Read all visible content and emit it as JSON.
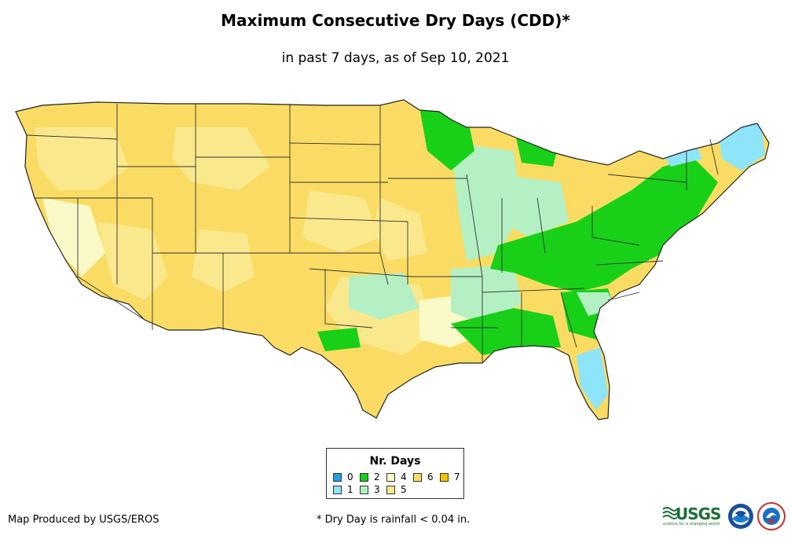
{
  "title": "Maximum Consecutive Dry Days (CDD)*",
  "subtitle": "in past 7 days, as of Sep 10, 2021",
  "legend": {
    "title": "Nr. Days",
    "items": [
      {
        "label": "0",
        "color": "#1ea0e6"
      },
      {
        "label": "1",
        "color": "#8ee4f8"
      },
      {
        "label": "2",
        "color": "#18d018"
      },
      {
        "label": "3",
        "color": "#b4f0c4"
      },
      {
        "label": "4",
        "color": "#fafac8"
      },
      {
        "label": "5",
        "color": "#fae88c"
      },
      {
        "label": "6",
        "color": "#fadc64"
      },
      {
        "label": "7",
        "color": "#f5c300"
      }
    ]
  },
  "credit": "Map Produced by USGS/EROS",
  "footnote": "* Dry Day is rainfall < 0.04 in.",
  "logos": {
    "usgs": "USGS",
    "usgs_tagline": "science for a changing world",
    "noaa": "NOAA",
    "nws": "National Weather Service"
  }
}
